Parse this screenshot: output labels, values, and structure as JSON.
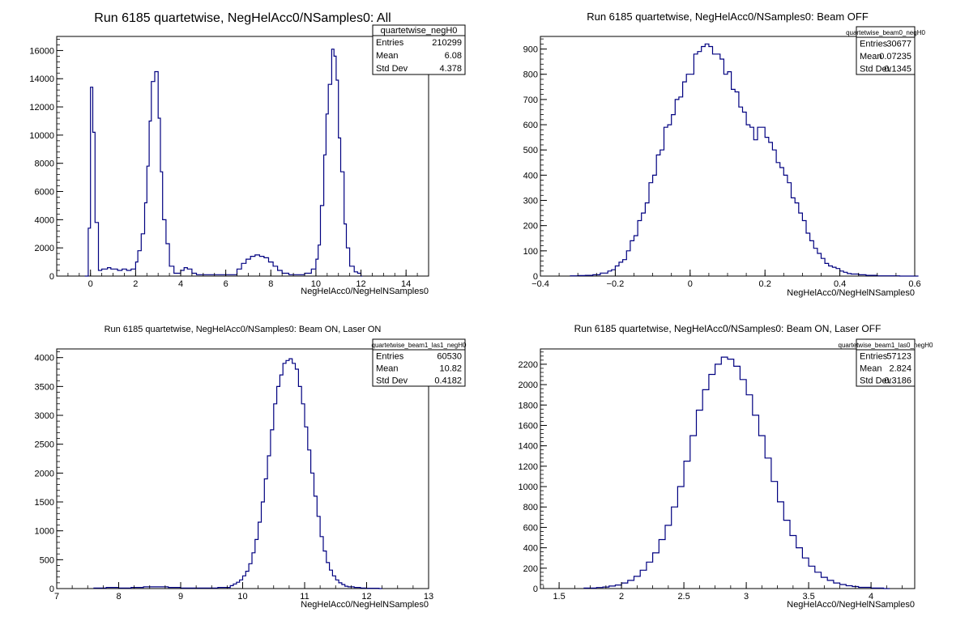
{
  "chart_data": [
    {
      "type": "histogram",
      "title": "Run 6185 quartetwise, NegHelAcc0/NSamples0: All",
      "xlabel": "NegHelAcc0/NegHelNSamples0",
      "ylabel": "",
      "xlim": [
        -1.5,
        15
      ],
      "ylim": [
        0,
        17000
      ],
      "xticks": [
        0,
        2,
        4,
        6,
        8,
        10,
        12,
        14
      ],
      "xtick_labels": [
        "0",
        "2",
        "4",
        "6",
        "8",
        "10",
        "12",
        "14"
      ],
      "yticks": [
        0,
        2000,
        4000,
        6000,
        8000,
        10000,
        12000,
        14000,
        16000
      ],
      "ytick_labels": [
        "0",
        "2000",
        "4000",
        "6000",
        "8000",
        "10000",
        "12000",
        "14000",
        "16000"
      ],
      "bin_edges": [
        -0.25,
        0.25
      ],
      "bins": [
        [
          -0.25,
          0
        ],
        [
          -0.1,
          3400
        ],
        [
          0.0,
          13400
        ],
        [
          0.1,
          10200
        ],
        [
          0.2,
          3800
        ],
        [
          0.35,
          400
        ],
        [
          0.5,
          500
        ],
        [
          0.6,
          500
        ],
        [
          0.75,
          600
        ],
        [
          0.9,
          500
        ],
        [
          1.0,
          500
        ],
        [
          1.2,
          400
        ],
        [
          1.4,
          500
        ],
        [
          1.6,
          400
        ],
        [
          1.8,
          500
        ],
        [
          2.0,
          1000
        ],
        [
          2.1,
          1800
        ],
        [
          2.25,
          3000
        ],
        [
          2.4,
          5200
        ],
        [
          2.5,
          7800
        ],
        [
          2.6,
          11000
        ],
        [
          2.7,
          13800
        ],
        [
          2.85,
          14500
        ],
        [
          3.0,
          11200
        ],
        [
          3.1,
          7400
        ],
        [
          3.2,
          4000
        ],
        [
          3.35,
          2300
        ],
        [
          3.5,
          700
        ],
        [
          3.7,
          200
        ],
        [
          3.85,
          200
        ],
        [
          4.0,
          400
        ],
        [
          4.15,
          600
        ],
        [
          4.3,
          500
        ],
        [
          4.5,
          200
        ],
        [
          4.7,
          100
        ],
        [
          5.0,
          100
        ],
        [
          5.5,
          100
        ],
        [
          6.0,
          100
        ],
        [
          6.5,
          500
        ],
        [
          6.7,
          900
        ],
        [
          6.9,
          1200
        ],
        [
          7.1,
          1400
        ],
        [
          7.3,
          1500
        ],
        [
          7.5,
          1400
        ],
        [
          7.7,
          1300
        ],
        [
          7.9,
          1000
        ],
        [
          8.1,
          700
        ],
        [
          8.3,
          400
        ],
        [
          8.5,
          200
        ],
        [
          8.8,
          100
        ],
        [
          9.0,
          100
        ],
        [
          9.5,
          200
        ],
        [
          9.8,
          500
        ],
        [
          10.0,
          1200
        ],
        [
          10.1,
          2200
        ],
        [
          10.2,
          5000
        ],
        [
          10.35,
          8600
        ],
        [
          10.45,
          11500
        ],
        [
          10.55,
          13600
        ],
        [
          10.7,
          16100
        ],
        [
          10.8,
          15600
        ],
        [
          10.9,
          13900
        ],
        [
          11.0,
          9800
        ],
        [
          11.1,
          7400
        ],
        [
          11.25,
          3700
        ],
        [
          11.35,
          2000
        ],
        [
          11.5,
          700
        ],
        [
          11.7,
          300
        ],
        [
          11.85,
          200
        ],
        [
          12.0,
          0
        ]
      ],
      "stats": {
        "name": "quartetwise_negH0",
        "rows": [
          {
            "label": "Entries",
            "value": "210299"
          },
          {
            "label": "Mean",
            "value": "6.08"
          },
          {
            "label": "Std Dev",
            "value": "4.378"
          }
        ]
      },
      "line_color": "#000080",
      "grid": false
    },
    {
      "type": "histogram",
      "title": "Run 6185 quartetwise, NegHelAcc0/NSamples0: Beam OFF",
      "xlabel": "NegHelAcc0/NegHelNSamples0",
      "ylabel": "",
      "xlim": [
        -0.4,
        0.6
      ],
      "ylim": [
        0,
        950
      ],
      "xticks": [
        -0.4,
        -0.2,
        0,
        0.2,
        0.4,
        0.6
      ],
      "xtick_labels": [
        "−0.4",
        "−0.2",
        "0",
        "0.2",
        "0.4",
        "0.6"
      ],
      "yticks": [
        0,
        100,
        200,
        300,
        400,
        500,
        600,
        700,
        800,
        900
      ],
      "ytick_labels": [
        "0",
        "100",
        "200",
        "300",
        "400",
        "500",
        "600",
        "700",
        "800",
        "900"
      ],
      "bins": [
        [
          -0.32,
          1
        ],
        [
          -0.3,
          2
        ],
        [
          -0.28,
          3
        ],
        [
          -0.26,
          5
        ],
        [
          -0.24,
          12
        ],
        [
          -0.22,
          20
        ],
        [
          -0.21,
          25
        ],
        [
          -0.2,
          40
        ],
        [
          -0.19,
          55
        ],
        [
          -0.18,
          65
        ],
        [
          -0.17,
          100
        ],
        [
          -0.16,
          140
        ],
        [
          -0.15,
          160
        ],
        [
          -0.14,
          220
        ],
        [
          -0.13,
          250
        ],
        [
          -0.12,
          290
        ],
        [
          -0.11,
          370
        ],
        [
          -0.1,
          400
        ],
        [
          -0.09,
          480
        ],
        [
          -0.08,
          500
        ],
        [
          -0.07,
          590
        ],
        [
          -0.06,
          600
        ],
        [
          -0.05,
          640
        ],
        [
          -0.04,
          700
        ],
        [
          -0.03,
          710
        ],
        [
          -0.02,
          770
        ],
        [
          -0.01,
          800
        ],
        [
          0.0,
          800
        ],
        [
          0.01,
          880
        ],
        [
          0.02,
          890
        ],
        [
          0.03,
          910
        ],
        [
          0.04,
          920
        ],
        [
          0.05,
          910
        ],
        [
          0.06,
          880
        ],
        [
          0.07,
          880
        ],
        [
          0.08,
          860
        ],
        [
          0.09,
          800
        ],
        [
          0.1,
          810
        ],
        [
          0.11,
          740
        ],
        [
          0.12,
          730
        ],
        [
          0.13,
          670
        ],
        [
          0.14,
          650
        ],
        [
          0.15,
          600
        ],
        [
          0.16,
          590
        ],
        [
          0.17,
          540
        ],
        [
          0.18,
          590
        ],
        [
          0.19,
          590
        ],
        [
          0.2,
          550
        ],
        [
          0.21,
          530
        ],
        [
          0.22,
          500
        ],
        [
          0.23,
          450
        ],
        [
          0.24,
          430
        ],
        [
          0.25,
          400
        ],
        [
          0.26,
          370
        ],
        [
          0.27,
          310
        ],
        [
          0.28,
          290
        ],
        [
          0.29,
          250
        ],
        [
          0.3,
          220
        ],
        [
          0.31,
          170
        ],
        [
          0.32,
          140
        ],
        [
          0.33,
          110
        ],
        [
          0.34,
          90
        ],
        [
          0.35,
          70
        ],
        [
          0.36,
          50
        ],
        [
          0.37,
          40
        ],
        [
          0.38,
          35
        ],
        [
          0.39,
          30
        ],
        [
          0.4,
          20
        ],
        [
          0.41,
          15
        ],
        [
          0.42,
          10
        ],
        [
          0.43,
          8
        ],
        [
          0.45,
          5
        ],
        [
          0.47,
          3
        ],
        [
          0.5,
          1
        ],
        [
          0.56,
          0
        ]
      ],
      "stats": {
        "name": "quartetwise_beam0_negH0",
        "rows": [
          {
            "label": "Entries",
            "value": "30677"
          },
          {
            "label": "Mean",
            "value": "0.07235"
          },
          {
            "label": "Std Dev",
            "value": "0.1345"
          }
        ]
      },
      "line_color": "#000080",
      "grid": false
    },
    {
      "type": "histogram",
      "title": "Run 6185 quartetwise, NegHelAcc0/NSamples0: Beam ON, Laser ON",
      "xlabel": "NegHelAcc0/NegHelNSamples0",
      "ylabel": "",
      "xlim": [
        7,
        13
      ],
      "ylim": [
        0,
        4150
      ],
      "xticks": [
        7,
        8,
        9,
        10,
        11,
        12,
        13
      ],
      "xtick_labels": [
        "7",
        "8",
        "9",
        "10",
        "11",
        "12",
        "13"
      ],
      "yticks": [
        0,
        500,
        1000,
        1500,
        2000,
        2500,
        3000,
        3500,
        4000
      ],
      "ytick_labels": [
        "0",
        "500",
        "1000",
        "1500",
        "2000",
        "2500",
        "3000",
        "3500",
        "4000"
      ],
      "bins": [
        [
          7.6,
          10
        ],
        [
          7.8,
          20
        ],
        [
          8.0,
          10
        ],
        [
          8.2,
          20
        ],
        [
          8.4,
          30
        ],
        [
          8.6,
          30
        ],
        [
          8.8,
          20
        ],
        [
          9.0,
          10
        ],
        [
          9.2,
          10
        ],
        [
          9.4,
          10
        ],
        [
          9.6,
          20
        ],
        [
          9.7,
          20
        ],
        [
          9.8,
          50
        ],
        [
          9.85,
          80
        ],
        [
          9.9,
          110
        ],
        [
          9.95,
          150
        ],
        [
          10.0,
          220
        ],
        [
          10.05,
          300
        ],
        [
          10.1,
          430
        ],
        [
          10.15,
          620
        ],
        [
          10.2,
          850
        ],
        [
          10.25,
          1150
        ],
        [
          10.3,
          1500
        ],
        [
          10.35,
          1900
        ],
        [
          10.4,
          2300
        ],
        [
          10.45,
          2750
        ],
        [
          10.5,
          3200
        ],
        [
          10.55,
          3500
        ],
        [
          10.6,
          3700
        ],
        [
          10.65,
          3900
        ],
        [
          10.7,
          3950
        ],
        [
          10.75,
          3980
        ],
        [
          10.8,
          3900
        ],
        [
          10.85,
          3800
        ],
        [
          10.9,
          3500
        ],
        [
          10.95,
          3200
        ],
        [
          11.0,
          2800
        ],
        [
          11.05,
          2400
        ],
        [
          11.1,
          2000
        ],
        [
          11.15,
          1600
        ],
        [
          11.2,
          1250
        ],
        [
          11.25,
          900
        ],
        [
          11.3,
          650
        ],
        [
          11.35,
          450
        ],
        [
          11.4,
          320
        ],
        [
          11.45,
          220
        ],
        [
          11.5,
          150
        ],
        [
          11.55,
          100
        ],
        [
          11.6,
          70
        ],
        [
          11.65,
          40
        ],
        [
          11.7,
          30
        ],
        [
          11.8,
          20
        ],
        [
          11.9,
          10
        ],
        [
          12.0,
          5
        ],
        [
          12.2,
          0
        ]
      ],
      "stats": {
        "name": "quartetwise_beam1_las1_negH0",
        "rows": [
          {
            "label": "Entries",
            "value": "60530"
          },
          {
            "label": "Mean",
            "value": "10.82"
          },
          {
            "label": "Std Dev",
            "value": "0.4182"
          }
        ]
      },
      "line_color": "#000080",
      "grid": false
    },
    {
      "type": "histogram",
      "title": "Run 6185 quartetwise, NegHelAcc0/NSamples0: Beam ON, Laser OFF",
      "xlabel": "NegHelAcc0/NegHelNSamples0",
      "ylabel": "",
      "xlim": [
        1.35,
        4.35
      ],
      "ylim": [
        0,
        2350
      ],
      "xticks": [
        1.5,
        2,
        2.5,
        3,
        3.5,
        4
      ],
      "xtick_labels": [
        "1.5",
        "2",
        "2.5",
        "3",
        "3.5",
        "4"
      ],
      "yticks": [
        0,
        200,
        400,
        600,
        800,
        1000,
        1200,
        1400,
        1600,
        1800,
        2000,
        2200
      ],
      "ytick_labels": [
        "0",
        "200",
        "400",
        "600",
        "800",
        "1000",
        "1200",
        "1400",
        "1600",
        "1800",
        "2000",
        "2200"
      ],
      "bins": [
        [
          1.7,
          5
        ],
        [
          1.8,
          10
        ],
        [
          1.85,
          15
        ],
        [
          1.9,
          25
        ],
        [
          1.95,
          35
        ],
        [
          2.0,
          55
        ],
        [
          2.05,
          80
        ],
        [
          2.1,
          120
        ],
        [
          2.15,
          180
        ],
        [
          2.2,
          260
        ],
        [
          2.25,
          350
        ],
        [
          2.3,
          480
        ],
        [
          2.35,
          620
        ],
        [
          2.4,
          800
        ],
        [
          2.45,
          1000
        ],
        [
          2.5,
          1250
        ],
        [
          2.55,
          1500
        ],
        [
          2.6,
          1750
        ],
        [
          2.65,
          1950
        ],
        [
          2.7,
          2100
        ],
        [
          2.75,
          2200
        ],
        [
          2.8,
          2270
        ],
        [
          2.85,
          2250
        ],
        [
          2.9,
          2180
        ],
        [
          2.95,
          2050
        ],
        [
          3.0,
          1900
        ],
        [
          3.05,
          1700
        ],
        [
          3.1,
          1500
        ],
        [
          3.15,
          1280
        ],
        [
          3.2,
          1050
        ],
        [
          3.25,
          850
        ],
        [
          3.3,
          670
        ],
        [
          3.35,
          520
        ],
        [
          3.4,
          400
        ],
        [
          3.45,
          300
        ],
        [
          3.5,
          220
        ],
        [
          3.55,
          160
        ],
        [
          3.6,
          110
        ],
        [
          3.65,
          80
        ],
        [
          3.7,
          55
        ],
        [
          3.75,
          40
        ],
        [
          3.8,
          28
        ],
        [
          3.85,
          20
        ],
        [
          3.9,
          12
        ],
        [
          4.0,
          5
        ],
        [
          4.1,
          0
        ]
      ],
      "stats": {
        "name": "quartetwise_beam1_las0_negH0",
        "rows": [
          {
            "label": "Entries",
            "value": "57123"
          },
          {
            "label": "Mean",
            "value": "2.824"
          },
          {
            "label": "Std Dev",
            "value": "0.3186"
          }
        ]
      },
      "line_color": "#000080",
      "grid": false
    }
  ]
}
